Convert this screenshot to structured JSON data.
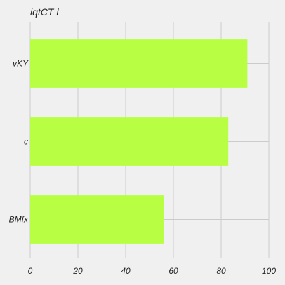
{
  "chart_data": {
    "type": "bar",
    "orientation": "horizontal",
    "title": "iqtCT l",
    "xlabel": "",
    "ylabel": "",
    "categories": [
      "vKY",
      "c",
      "BMfx"
    ],
    "values": [
      91,
      83,
      56
    ],
    "xlim": [
      0,
      100
    ],
    "xticks": [
      0,
      20,
      40,
      60,
      80,
      100
    ],
    "grid": true,
    "legend": "none",
    "bar_color": "#b8ff44",
    "background_color": "#f0f0f0",
    "grid_color": "#cbcbcb"
  }
}
